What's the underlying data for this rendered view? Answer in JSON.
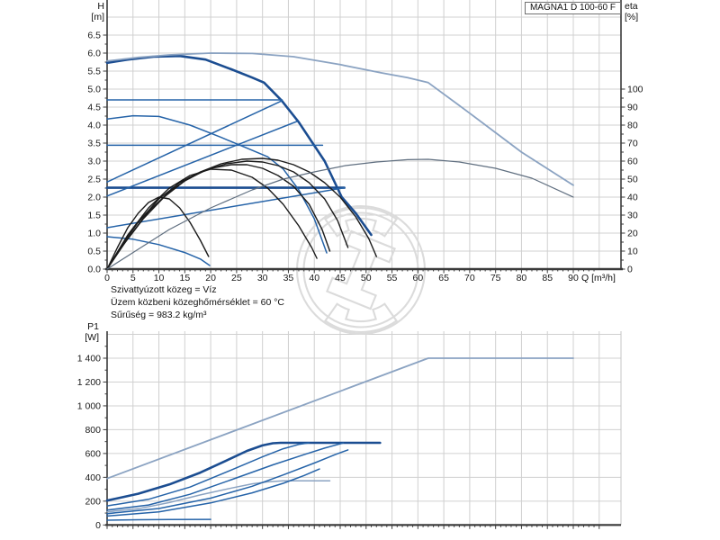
{
  "header": {
    "model_label": "MAGNA1 D 100-60 F"
  },
  "top_chart": {
    "y_left": {
      "line1": "H",
      "line2": "[m]"
    },
    "y_right": {
      "line1": "eta",
      "line2": "[%]"
    },
    "x_unit": "Q [m³/h]"
  },
  "bottom_chart": {
    "y_left": {
      "line1": "P1",
      "line2": "[W]"
    }
  },
  "annotations": {
    "lines": [
      "Szivattyúzott közeg = Víz",
      "Üzem közbeni közeghőmérséklet = 60 °C",
      "Sűrűség = 983.2 kg/m³"
    ]
  },
  "colors": {
    "grid": "#d0d0d0",
    "axis": "#3a3a3a",
    "tick_text": "#1a1a1a",
    "blue_dark": "#1b4d91",
    "blue": "#2563a8",
    "blue_light": "#8ba3c2",
    "black_curve": "#1a1a1a",
    "gray_curve": "#606f80",
    "watermark": "#dbdbdb"
  },
  "chart_data": [
    {
      "type": "line",
      "title": "",
      "xlabel": "Q [m³/h]",
      "ylabel_left": "H [m]",
      "ylabel_right": "eta [%]",
      "xlim": [
        0,
        99
      ],
      "ylim_left": [
        0,
        7.5
      ],
      "ylim_right": [
        0,
        100
      ],
      "grid": true,
      "x_tick_labels": [
        "0",
        "5",
        "10",
        "15",
        "20",
        "25",
        "30",
        "35",
        "40",
        "45",
        "50",
        "55",
        "60",
        "65",
        "70",
        "75",
        "80",
        "85",
        "90"
      ],
      "y_left_tick_labels": [
        "0.0",
        "0.5",
        "1.0",
        "1.5",
        "2.0",
        "2.5",
        "3.0",
        "3.5",
        "4.0",
        "4.5",
        "5.0",
        "5.5",
        "6.0",
        "6.5"
      ],
      "y_right_tick_labels": [
        "0",
        "10",
        "20",
        "30",
        "40",
        "50",
        "60",
        "70",
        "80",
        "90",
        "100"
      ],
      "series": [
        {
          "name": "single-max-curve",
          "axis": "H",
          "color": "#1b4d91",
          "width": 2.6,
          "points": [
            [
              0,
              5.73
            ],
            [
              4,
              5.82
            ],
            [
              9,
              5.9
            ],
            [
              14,
              5.92
            ],
            [
              19,
              5.82
            ],
            [
              24,
              5.55
            ],
            [
              28,
              5.32
            ],
            [
              30.3,
              5.18
            ],
            [
              33.7,
              4.68
            ],
            [
              37,
              4.08
            ],
            [
              42,
              3.0
            ],
            [
              45.3,
              2.0
            ],
            [
              48,
              1.55
            ],
            [
              51,
              0.95
            ]
          ]
        },
        {
          "name": "twin-max-curve",
          "axis": "H",
          "color": "#8ba3c2",
          "width": 1.8,
          "points": [
            [
              0,
              5.78
            ],
            [
              6,
              5.88
            ],
            [
              12,
              5.95
            ],
            [
              20,
              6.0
            ],
            [
              28,
              5.99
            ],
            [
              36,
              5.9
            ],
            [
              45,
              5.68
            ],
            [
              53,
              5.45
            ],
            [
              58,
              5.32
            ],
            [
              62,
              5.18
            ],
            [
              70,
              4.33
            ],
            [
              80,
              3.25
            ],
            [
              90,
              2.33
            ]
          ]
        },
        {
          "name": "const-pressure-curve-1",
          "axis": "H",
          "color": "#2563a8",
          "width": 1.5,
          "points": [
            [
              0,
              4.7
            ],
            [
              33.8,
              4.7
            ]
          ]
        },
        {
          "name": "const-pressure-curve-2",
          "axis": "H",
          "color": "#2563a8",
          "width": 1.5,
          "points": [
            [
              0,
              3.44
            ],
            [
              41.6,
              3.44
            ]
          ]
        },
        {
          "name": "const-pressure-curve-3",
          "axis": "H",
          "color": "#1b4d91",
          "width": 2.6,
          "points": [
            [
              0,
              2.26
            ],
            [
              45.8,
              2.26
            ]
          ]
        },
        {
          "name": "prop-pressure-curve-1",
          "axis": "H",
          "color": "#2563a8",
          "width": 1.5,
          "points": [
            [
              0,
              2.42
            ],
            [
              33.8,
              4.68
            ]
          ]
        },
        {
          "name": "prop-pressure-curve-2",
          "axis": "H",
          "color": "#2563a8",
          "width": 1.5,
          "points": [
            [
              0,
              2.03
            ],
            [
              36.6,
              4.1
            ]
          ]
        },
        {
          "name": "prop-pressure-curve-3",
          "axis": "H",
          "color": "#2563a8",
          "width": 1.5,
          "points": [
            [
              0,
              1.15
            ],
            [
              45.8,
              2.26
            ]
          ]
        },
        {
          "name": "mid-speed-curve",
          "axis": "H",
          "color": "#2563a8",
          "width": 1.5,
          "points": [
            [
              0,
              4.17
            ],
            [
              5,
              4.26
            ],
            [
              10,
              4.24
            ],
            [
              16,
              4.0
            ],
            [
              22,
              3.66
            ],
            [
              27,
              3.36
            ],
            [
              31,
              3.12
            ],
            [
              34,
              2.78
            ],
            [
              37,
              2.2
            ],
            [
              40,
              1.4
            ],
            [
              42.4,
              0.45
            ]
          ]
        },
        {
          "name": "min-speed-curve",
          "axis": "H",
          "color": "#2563a8",
          "width": 1.5,
          "points": [
            [
              0,
              0.9
            ],
            [
              5,
              0.83
            ],
            [
              10,
              0.68
            ],
            [
              15,
              0.46
            ],
            [
              18,
              0.28
            ],
            [
              19.8,
              0.1
            ]
          ]
        },
        {
          "name": "eta-curve-max",
          "axis": "eta",
          "color": "#1a1a1a",
          "width": 1.4,
          "points": [
            [
              0,
              0
            ],
            [
              3,
              14
            ],
            [
              6,
              26
            ],
            [
              10,
              39
            ],
            [
              14,
              48
            ],
            [
              18,
              54
            ],
            [
              22,
              58.5
            ],
            [
              26,
              61
            ],
            [
              30,
              61.5
            ],
            [
              33,
              60.5
            ],
            [
              36,
              58
            ],
            [
              39,
              54
            ],
            [
              42,
              48
            ],
            [
              45,
              40
            ],
            [
              48,
              29
            ],
            [
              50.5,
              17
            ],
            [
              52,
              7
            ]
          ]
        },
        {
          "name": "eta-curve-2",
          "axis": "eta",
          "color": "#1a1a1a",
          "width": 1.4,
          "points": [
            [
              0,
              0
            ],
            [
              3,
              13
            ],
            [
              7,
              28
            ],
            [
              11,
              40
            ],
            [
              15,
              49
            ],
            [
              19,
              55
            ],
            [
              23,
              58.5
            ],
            [
              27,
              60
            ],
            [
              30,
              59.5
            ],
            [
              33,
              57.5
            ],
            [
              36,
              54
            ],
            [
              39,
              48
            ],
            [
              42,
              39
            ],
            [
              44.5,
              27
            ],
            [
              46.5,
              12
            ]
          ]
        },
        {
          "name": "eta-curve-3",
          "axis": "eta",
          "color": "#1a1a1a",
          "width": 1.4,
          "points": [
            [
              0,
              0
            ],
            [
              4,
              17
            ],
            [
              8,
              32
            ],
            [
              12,
              43
            ],
            [
              16,
              51
            ],
            [
              20,
              56
            ],
            [
              24,
              58
            ],
            [
              27,
              58
            ],
            [
              30,
              56
            ],
            [
              33,
              52
            ],
            [
              36,
              46
            ],
            [
              39,
              36
            ],
            [
              41.5,
              22
            ],
            [
              43,
              10
            ]
          ]
        },
        {
          "name": "eta-curve-mid",
          "axis": "eta",
          "color": "#1a1a1a",
          "width": 1.4,
          "points": [
            [
              0,
              0
            ],
            [
              4,
              19
            ],
            [
              8,
              34
            ],
            [
              12,
              45
            ],
            [
              16,
              52
            ],
            [
              20,
              55.5
            ],
            [
              24,
              55
            ],
            [
              28,
              51
            ],
            [
              31,
              45
            ],
            [
              34,
              36
            ],
            [
              37,
              24
            ],
            [
              39.5,
              12
            ],
            [
              40.5,
              6
            ]
          ]
        },
        {
          "name": "eta-curve-min",
          "axis": "eta",
          "color": "#1a1a1a",
          "width": 1.4,
          "points": [
            [
              0,
              0
            ],
            [
              2,
              12
            ],
            [
              4,
              23
            ],
            [
              6,
              31
            ],
            [
              8,
              37
            ],
            [
              10,
              40
            ],
            [
              12,
              39
            ],
            [
              14,
              34
            ],
            [
              16,
              26
            ],
            [
              18,
              16
            ],
            [
              19.6,
              7
            ]
          ]
        },
        {
          "name": "eta-curve-twin",
          "axis": "eta",
          "color": "#606f80",
          "width": 1.2,
          "points": [
            [
              0,
              0
            ],
            [
              6,
              11
            ],
            [
              12,
              22
            ],
            [
              20,
              34
            ],
            [
              28,
              44
            ],
            [
              34,
              50
            ],
            [
              40,
              54
            ],
            [
              46,
              57.5
            ],
            [
              52,
              59.5
            ],
            [
              58,
              60.8
            ],
            [
              62,
              61
            ],
            [
              68,
              59.5
            ],
            [
              75,
              56
            ],
            [
              82,
              50.5
            ],
            [
              90,
              40
            ]
          ]
        }
      ]
    },
    {
      "type": "line",
      "title": "",
      "xlabel": "Q [m³/h]",
      "ylabel_left": "P1 [W]",
      "xlim": [
        0,
        99
      ],
      "ylim_left": [
        0,
        1600
      ],
      "grid": true,
      "y_left_tick_labels": [
        "0",
        "200",
        "400",
        "600",
        "800",
        "1 000",
        "1 200",
        "1 400"
      ],
      "series": [
        {
          "name": "power-twin-curve",
          "axis": "P",
          "color": "#8ba3c2",
          "width": 1.8,
          "points": [
            [
              0,
              390
            ],
            [
              62,
              1400
            ],
            [
              90,
              1400
            ]
          ]
        },
        {
          "name": "power-max-curve",
          "axis": "P",
          "color": "#1b4d91",
          "width": 2.6,
          "points": [
            [
              0,
              205
            ],
            [
              6,
              262
            ],
            [
              12,
              340
            ],
            [
              18,
              440
            ],
            [
              23,
              540
            ],
            [
              27,
              622
            ],
            [
              30,
              668
            ],
            [
              32,
              686
            ],
            [
              33.5,
              690
            ],
            [
              52.7,
              690
            ]
          ]
        },
        {
          "name": "power-curve-2",
          "axis": "P",
          "color": "#2563a8",
          "width": 1.5,
          "points": [
            [
              0,
              160
            ],
            [
              8,
              215
            ],
            [
              16,
              318
            ],
            [
              24,
              462
            ],
            [
              30,
              572
            ],
            [
              34,
              640
            ],
            [
              37,
              676
            ],
            [
              39,
              690
            ]
          ]
        },
        {
          "name": "power-curve-3",
          "axis": "P",
          "color": "#2563a8",
          "width": 1.5,
          "points": [
            [
              0,
              125
            ],
            [
              8,
              168
            ],
            [
              16,
              258
            ],
            [
              24,
              380
            ],
            [
              32,
              505
            ],
            [
              38,
              590
            ],
            [
              42,
              645
            ],
            [
              45.6,
              688
            ]
          ]
        },
        {
          "name": "power-mid-curve",
          "axis": "P",
          "color": "#8ba3c2",
          "width": 1.5,
          "points": [
            [
              0,
              110
            ],
            [
              6,
              136
            ],
            [
              12,
              188
            ],
            [
              18,
              252
            ],
            [
              24,
              310
            ],
            [
              28,
              345
            ],
            [
              31,
              362
            ],
            [
              34,
              370
            ],
            [
              43,
              370
            ]
          ]
        },
        {
          "name": "power-curve-4",
          "axis": "P",
          "color": "#2563a8",
          "width": 1.5,
          "points": [
            [
              0,
              95
            ],
            [
              10,
              138
            ],
            [
              20,
              225
            ],
            [
              28,
              325
            ],
            [
              34,
              420
            ],
            [
              40,
              520
            ],
            [
              44,
              590
            ],
            [
              46.5,
              630
            ]
          ]
        },
        {
          "name": "power-curve-5",
          "axis": "P",
          "color": "#2563a8",
          "width": 1.5,
          "points": [
            [
              0,
              75
            ],
            [
              10,
              110
            ],
            [
              20,
              185
            ],
            [
              28,
              270
            ],
            [
              34,
              350
            ],
            [
              38,
              415
            ],
            [
              41,
              470
            ]
          ]
        },
        {
          "name": "power-min-curve",
          "axis": "P",
          "color": "#2563a8",
          "width": 1.5,
          "points": [
            [
              0,
              40
            ],
            [
              6,
              44
            ],
            [
              12,
              46
            ],
            [
              20,
              47
            ]
          ]
        }
      ]
    }
  ]
}
